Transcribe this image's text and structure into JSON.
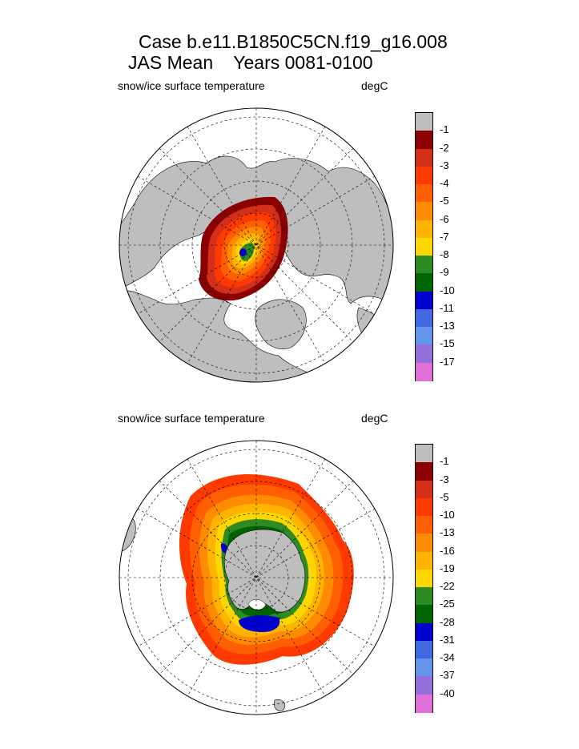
{
  "header": {
    "title_line1": "Case b.e11.B1850C5CN.f19_g16.008",
    "title_line2": "JAS Mean    Years 0081-0100"
  },
  "panels": [
    {
      "id": "north",
      "left_label": "snow/ice surface temperature",
      "right_label": "degC",
      "colorbar": {
        "colors": [
          "#bebebe",
          "#8b0000",
          "#d32f1a",
          "#ff3a00",
          "#ff5f00",
          "#ff8c00",
          "#ffb400",
          "#ffd700",
          "#2e8b22",
          "#006400",
          "#0000cd",
          "#4169e1",
          "#6495ed",
          "#9370db",
          "#e070d8"
        ],
        "labels": [
          "-1",
          "-2",
          "-3",
          "-4",
          "-5",
          "-6",
          "-7",
          "-8",
          "-9",
          "-10",
          "-11",
          "-13",
          "-15",
          "-17"
        ]
      }
    },
    {
      "id": "south",
      "left_label": "snow/ice surface temperature",
      "right_label": "degC",
      "colorbar": {
        "colors": [
          "#bebebe",
          "#8b0000",
          "#d32f1a",
          "#ff3a00",
          "#ff5f00",
          "#ff8c00",
          "#ffb400",
          "#ffd700",
          "#2e8b22",
          "#006400",
          "#0000cd",
          "#4169e1",
          "#6495ed",
          "#9370db",
          "#e070d8"
        ],
        "labels": [
          "-1",
          "-3",
          "-5",
          "-10",
          "-13",
          "-16",
          "-19",
          "-22",
          "-25",
          "-28",
          "-31",
          "-34",
          "-37",
          "-40"
        ]
      }
    }
  ],
  "map_colors": {
    "land": "#bebebe",
    "ocean": "#ffffff"
  }
}
